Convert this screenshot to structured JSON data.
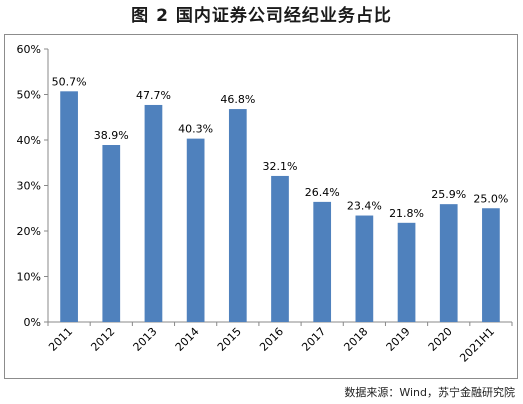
{
  "title": "图 2  国内证券公司经纪业务占比",
  "source": "数据来源：Wind，苏宁金融研究院",
  "colors": {
    "bar": "#4f81bd",
    "axis": "#888888",
    "text": "#000000"
  },
  "chart_data": {
    "type": "bar",
    "title": "图 2  国内证券公司经纪业务占比",
    "xlabel": "",
    "ylabel": "",
    "categories": [
      "2011",
      "2012",
      "2013",
      "2014",
      "2015",
      "2016",
      "2017",
      "2018",
      "2019",
      "2020",
      "2021H1"
    ],
    "values": [
      50.7,
      38.9,
      47.7,
      40.3,
      46.8,
      32.1,
      26.4,
      23.4,
      21.8,
      25.9,
      25.0
    ],
    "data_labels": [
      "50.7%",
      "38.9%",
      "47.7%",
      "40.3%",
      "46.8%",
      "32.1%",
      "26.4%",
      "23.4%",
      "21.8%",
      "25.9%",
      "25.0%"
    ],
    "ylim": [
      0,
      60
    ],
    "yticks": [
      0,
      10,
      20,
      30,
      40,
      50,
      60
    ],
    "ytick_labels": [
      "0%",
      "10%",
      "20%",
      "30%",
      "40%",
      "50%",
      "60%"
    ],
    "grid": false,
    "legend": "none"
  }
}
